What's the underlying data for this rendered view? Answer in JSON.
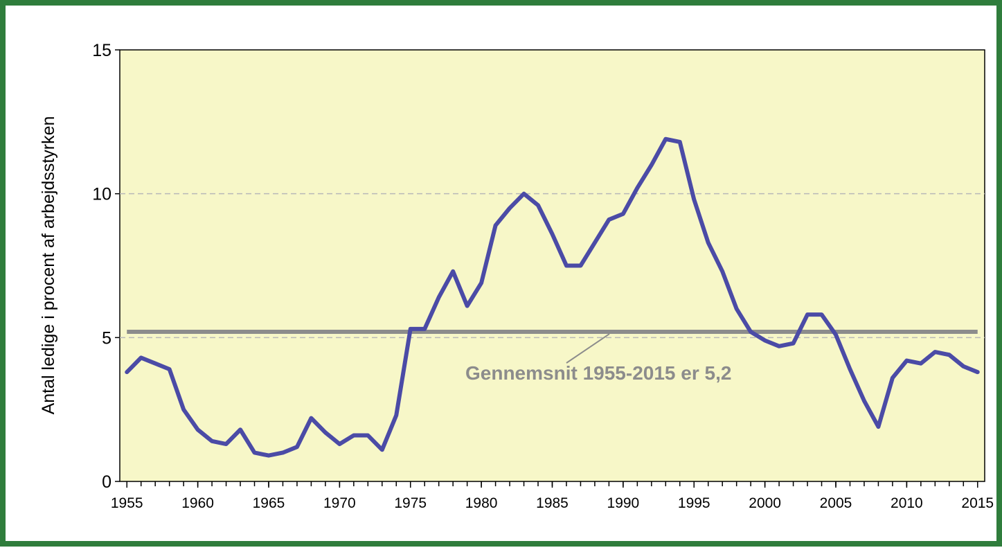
{
  "chart_data": {
    "type": "line",
    "ylabel": "Antal ledige i procent af arbejdsstyrken",
    "x": [
      1955,
      1956,
      1957,
      1958,
      1959,
      1960,
      1961,
      1962,
      1963,
      1964,
      1965,
      1966,
      1967,
      1968,
      1969,
      1970,
      1971,
      1972,
      1973,
      1974,
      1975,
      1976,
      1977,
      1978,
      1979,
      1980,
      1981,
      1982,
      1983,
      1984,
      1985,
      1986,
      1987,
      1988,
      1989,
      1990,
      1991,
      1992,
      1993,
      1994,
      1995,
      1996,
      1997,
      1998,
      1999,
      2000,
      2001,
      2002,
      2003,
      2004,
      2005,
      2006,
      2007,
      2008,
      2009,
      2010,
      2011,
      2012,
      2013,
      2014,
      2015
    ],
    "values": [
      3.8,
      4.3,
      4.1,
      3.9,
      2.5,
      1.8,
      1.4,
      1.3,
      1.8,
      1.0,
      0.9,
      1.0,
      1.2,
      2.2,
      1.7,
      1.3,
      1.6,
      1.6,
      1.1,
      2.3,
      5.3,
      5.3,
      6.4,
      7.3,
      6.1,
      6.9,
      8.9,
      9.5,
      10.0,
      9.6,
      8.6,
      7.5,
      7.5,
      8.3,
      9.1,
      9.3,
      10.2,
      11.0,
      11.9,
      11.8,
      9.8,
      8.3,
      7.3,
      6.0,
      5.2,
      4.9,
      4.7,
      4.8,
      5.8,
      5.8,
      5.1,
      3.9,
      2.8,
      1.9,
      3.6,
      4.2,
      4.1,
      4.5,
      4.4,
      4.0,
      3.8
    ],
    "color": "#4b4ba6",
    "average": {
      "value": 5.2,
      "label": "Gennemsnit 1955-2015 er 5,2",
      "color": "#8c8c8c"
    },
    "xlim": [
      1954.5,
      2015.5
    ],
    "xticks": [
      1955,
      1960,
      1965,
      1970,
      1975,
      1980,
      1985,
      1990,
      1995,
      2000,
      2005,
      2010,
      2015
    ],
    "xminorticks": [
      1955,
      1956,
      1957,
      1958,
      1959,
      1960,
      1961,
      1962,
      1963,
      1964,
      1965,
      1966,
      1967,
      1968,
      1969,
      1970,
      1971,
      1972,
      1973,
      1974,
      1975,
      1976,
      1977,
      1978,
      1979,
      1980,
      1981,
      1982,
      1983,
      1984,
      1985,
      1986,
      1987,
      1988,
      1989,
      1990,
      1991,
      1992,
      1993,
      1994,
      1995,
      1996,
      1997,
      1998,
      1999,
      2000,
      2001,
      2002,
      2003,
      2004,
      2005,
      2006,
      2007,
      2008,
      2009,
      2010,
      2011,
      2012,
      2013,
      2014,
      2015
    ],
    "ylim": [
      0,
      15
    ],
    "yticks": [
      0,
      5,
      10,
      15
    ],
    "grid": true
  }
}
